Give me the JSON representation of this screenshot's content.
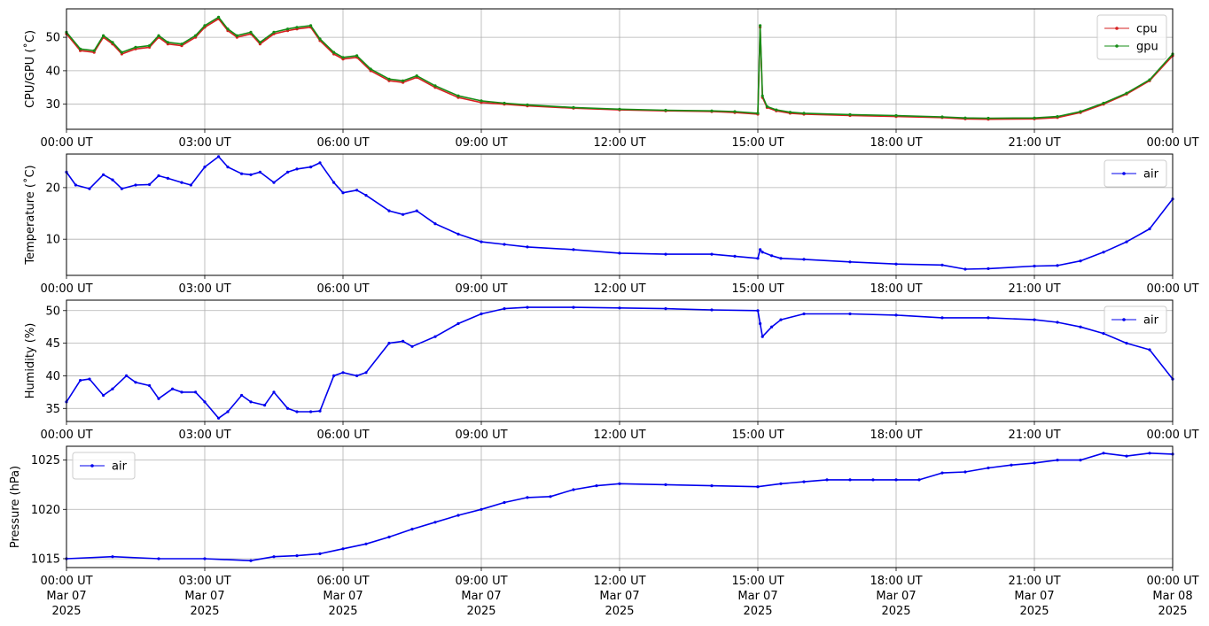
{
  "chart_data": [
    {
      "type": "line",
      "ylabel": "CPU/GPU (˚C)",
      "ylim": [
        22.5,
        58.5
      ],
      "yticks": [
        30,
        40,
        50
      ],
      "xlim": [
        0,
        24
      ],
      "xtick_labels": [
        "00:00 UT",
        "03:00 UT",
        "06:00 UT",
        "09:00 UT",
        "12:00 UT",
        "15:00 UT",
        "18:00 UT",
        "21:00 UT",
        "00:00 UT"
      ],
      "grid": true,
      "legend": "top-right",
      "series": [
        {
          "name": "cpu",
          "color": "#d62020",
          "x": [
            0,
            0.3,
            0.6,
            0.8,
            1,
            1.2,
            1.5,
            1.8,
            2,
            2.2,
            2.5,
            2.8,
            3,
            3.3,
            3.5,
            3.7,
            4,
            4.2,
            4.5,
            4.8,
            5,
            5.3,
            5.5,
            5.8,
            6,
            6.3,
            6.6,
            7,
            7.3,
            7.6,
            8,
            8.5,
            9,
            9.5,
            10,
            11,
            12,
            13,
            14,
            14.5,
            15,
            15.05,
            15.1,
            15.2,
            15.4,
            15.7,
            16,
            17,
            18,
            19,
            19.5,
            20,
            21,
            21.5,
            22,
            22.5,
            23,
            23.5,
            24
          ],
          "y": [
            51,
            46,
            45.5,
            50,
            48,
            45,
            46.5,
            47,
            50,
            48,
            47.5,
            50,
            53,
            55.5,
            52,
            50,
            51,
            48,
            51,
            52,
            52.5,
            53,
            49,
            45,
            43.5,
            44,
            40,
            37,
            36.5,
            38,
            35,
            32,
            30.5,
            30,
            29.5,
            28.8,
            28.3,
            28,
            27.8,
            27.5,
            27,
            53,
            32,
            29,
            28,
            27.3,
            27,
            26.6,
            26.3,
            26,
            25.6,
            25.5,
            25.6,
            26,
            27.5,
            30,
            33,
            37,
            44.5
          ]
        },
        {
          "name": "gpu",
          "color": "#168c16",
          "x": [
            0,
            0.3,
            0.6,
            0.8,
            1,
            1.2,
            1.5,
            1.8,
            2,
            2.2,
            2.5,
            2.8,
            3,
            3.3,
            3.5,
            3.7,
            4,
            4.2,
            4.5,
            4.8,
            5,
            5.3,
            5.5,
            5.8,
            6,
            6.3,
            6.6,
            7,
            7.3,
            7.6,
            8,
            8.5,
            9,
            9.5,
            10,
            11,
            12,
            13,
            14,
            14.5,
            15,
            15.05,
            15.1,
            15.2,
            15.4,
            15.7,
            16,
            17,
            18,
            19,
            19.5,
            20,
            21,
            21.5,
            22,
            22.5,
            23,
            23.5,
            24
          ],
          "y": [
            51.5,
            46.5,
            46,
            50.5,
            48.5,
            45.5,
            47,
            47.5,
            50.5,
            48.5,
            48,
            50.5,
            53.5,
            56,
            52.5,
            50.5,
            51.5,
            48.5,
            51.5,
            52.5,
            53,
            53.5,
            49.5,
            45.5,
            44,
            44.5,
            40.5,
            37.5,
            37,
            38.5,
            35.5,
            32.5,
            31,
            30.3,
            29.8,
            29,
            28.5,
            28.2,
            28,
            27.8,
            27.3,
            53.5,
            32.5,
            29.3,
            28.3,
            27.6,
            27.3,
            26.9,
            26.6,
            26.2,
            25.9,
            25.8,
            25.9,
            26.3,
            27.8,
            30.3,
            33.3,
            37.3,
            45
          ]
        }
      ]
    },
    {
      "type": "line",
      "ylabel": "Temperature (˚C)",
      "ylim": [
        3,
        26.5
      ],
      "yticks": [
        10,
        20
      ],
      "xlim": [
        0,
        24
      ],
      "xtick_labels": [
        "00:00 UT",
        "03:00 UT",
        "06:00 UT",
        "09:00 UT",
        "12:00 UT",
        "15:00 UT",
        "18:00 UT",
        "21:00 UT",
        "00:00 UT"
      ],
      "grid": true,
      "legend": "top-right",
      "series": [
        {
          "name": "air",
          "color": "#0000ee",
          "x": [
            0,
            0.2,
            0.5,
            0.8,
            1,
            1.2,
            1.5,
            1.8,
            2,
            2.2,
            2.5,
            2.7,
            3,
            3.3,
            3.5,
            3.8,
            4,
            4.2,
            4.5,
            4.8,
            5,
            5.3,
            5.5,
            5.8,
            6,
            6.3,
            6.5,
            7,
            7.3,
            7.6,
            8,
            8.5,
            9,
            9.5,
            10,
            11,
            12,
            13,
            14,
            14.5,
            15,
            15.05,
            15.1,
            15.3,
            15.5,
            16,
            17,
            18,
            19,
            19.5,
            20,
            21,
            21.5,
            22,
            22.5,
            23,
            23.5,
            24
          ],
          "y": [
            23,
            20.5,
            19.8,
            22.5,
            21.5,
            19.8,
            20.5,
            20.6,
            22.3,
            21.8,
            21,
            20.5,
            24,
            26,
            24,
            22.7,
            22.5,
            23,
            21,
            23,
            23.6,
            24,
            24.8,
            21,
            19,
            19.5,
            18.5,
            15.5,
            14.8,
            15.5,
            13,
            11,
            9.5,
            9,
            8.5,
            8,
            7.3,
            7.1,
            7.1,
            6.7,
            6.3,
            8,
            7.5,
            6.8,
            6.3,
            6.1,
            5.6,
            5.2,
            5,
            4.2,
            4.3,
            4.8,
            4.9,
            5.8,
            7.5,
            9.5,
            12,
            17.8
          ]
        }
      ]
    },
    {
      "type": "line",
      "ylabel": "Humidity (%)",
      "ylim": [
        33,
        51.6
      ],
      "yticks": [
        35,
        40,
        45,
        50
      ],
      "xlim": [
        0,
        24
      ],
      "xtick_labels": [
        "00:00 UT",
        "03:00 UT",
        "06:00 UT",
        "09:00 UT",
        "12:00 UT",
        "15:00 UT",
        "18:00 UT",
        "21:00 UT",
        "00:00 UT"
      ],
      "grid": true,
      "legend": "top-right",
      "series": [
        {
          "name": "air",
          "color": "#0000ee",
          "x": [
            0,
            0.3,
            0.5,
            0.8,
            1,
            1.3,
            1.5,
            1.8,
            2,
            2.3,
            2.5,
            2.8,
            3,
            3.3,
            3.5,
            3.8,
            4,
            4.3,
            4.5,
            4.8,
            5,
            5.3,
            5.5,
            5.8,
            6,
            6.3,
            6.5,
            7,
            7.3,
            7.5,
            8,
            8.5,
            9,
            9.5,
            10,
            11,
            12,
            13,
            14,
            15,
            15.05,
            15.1,
            15.3,
            15.5,
            16,
            17,
            18,
            19,
            20,
            21,
            21.5,
            22,
            22.5,
            23,
            23.5,
            24
          ],
          "y": [
            36,
            39.3,
            39.5,
            37,
            38,
            40,
            39,
            38.5,
            36.5,
            38,
            37.5,
            37.5,
            36,
            33.5,
            34.5,
            37,
            36,
            35.5,
            37.5,
            35,
            34.5,
            34.5,
            34.6,
            40,
            40.5,
            40,
            40.5,
            45,
            45.3,
            44.5,
            46,
            48,
            49.5,
            50.3,
            50.5,
            50.5,
            50.4,
            50.3,
            50.1,
            50,
            48,
            46,
            47.5,
            48.6,
            49.5,
            49.5,
            49.3,
            48.9,
            48.9,
            48.6,
            48.2,
            47.5,
            46.5,
            45,
            44,
            39.5
          ]
        }
      ]
    },
    {
      "type": "line",
      "ylabel": "Pressure (hPa)",
      "ylim": [
        1014.1,
        1026.4
      ],
      "yticks": [
        1015,
        1020,
        1025
      ],
      "xlim": [
        0,
        24
      ],
      "xtick_labels": [
        "00:00 UT\nMar 07\n2025",
        "03:00 UT\nMar 07\n2025",
        "06:00 UT\nMar 07\n2025",
        "09:00 UT\nMar 07\n2025",
        "12:00 UT\nMar 07\n2025",
        "15:00 UT\nMar 07\n2025",
        "18:00 UT\nMar 07\n2025",
        "21:00 UT\nMar 07\n2025",
        "00:00 UT\nMar 08\n2025"
      ],
      "grid": true,
      "legend": "top-left",
      "series": [
        {
          "name": "air",
          "color": "#0000ee",
          "x": [
            0,
            1,
            2,
            3,
            4,
            4.5,
            5,
            5.5,
            6,
            6.5,
            7,
            7.5,
            8,
            8.5,
            9,
            9.5,
            10,
            10.5,
            11,
            11.5,
            12,
            13,
            14,
            15,
            15.5,
            16,
            16.5,
            17,
            17.5,
            18,
            18.5,
            19,
            19.5,
            20,
            20.5,
            21,
            21.5,
            22,
            22.5,
            23,
            23.5,
            24
          ],
          "y": [
            1015,
            1015.2,
            1015,
            1015,
            1014.8,
            1015.2,
            1015.3,
            1015.5,
            1016,
            1016.5,
            1017.2,
            1018,
            1018.7,
            1019.4,
            1020,
            1020.7,
            1021.2,
            1021.3,
            1022,
            1022.4,
            1022.6,
            1022.5,
            1022.4,
            1022.3,
            1022.6,
            1022.8,
            1023,
            1023,
            1023,
            1023,
            1023,
            1023.7,
            1023.8,
            1024.2,
            1024.5,
            1024.7,
            1025,
            1025,
            1025.7,
            1025.4,
            1025.7,
            1025.6
          ]
        }
      ]
    }
  ]
}
